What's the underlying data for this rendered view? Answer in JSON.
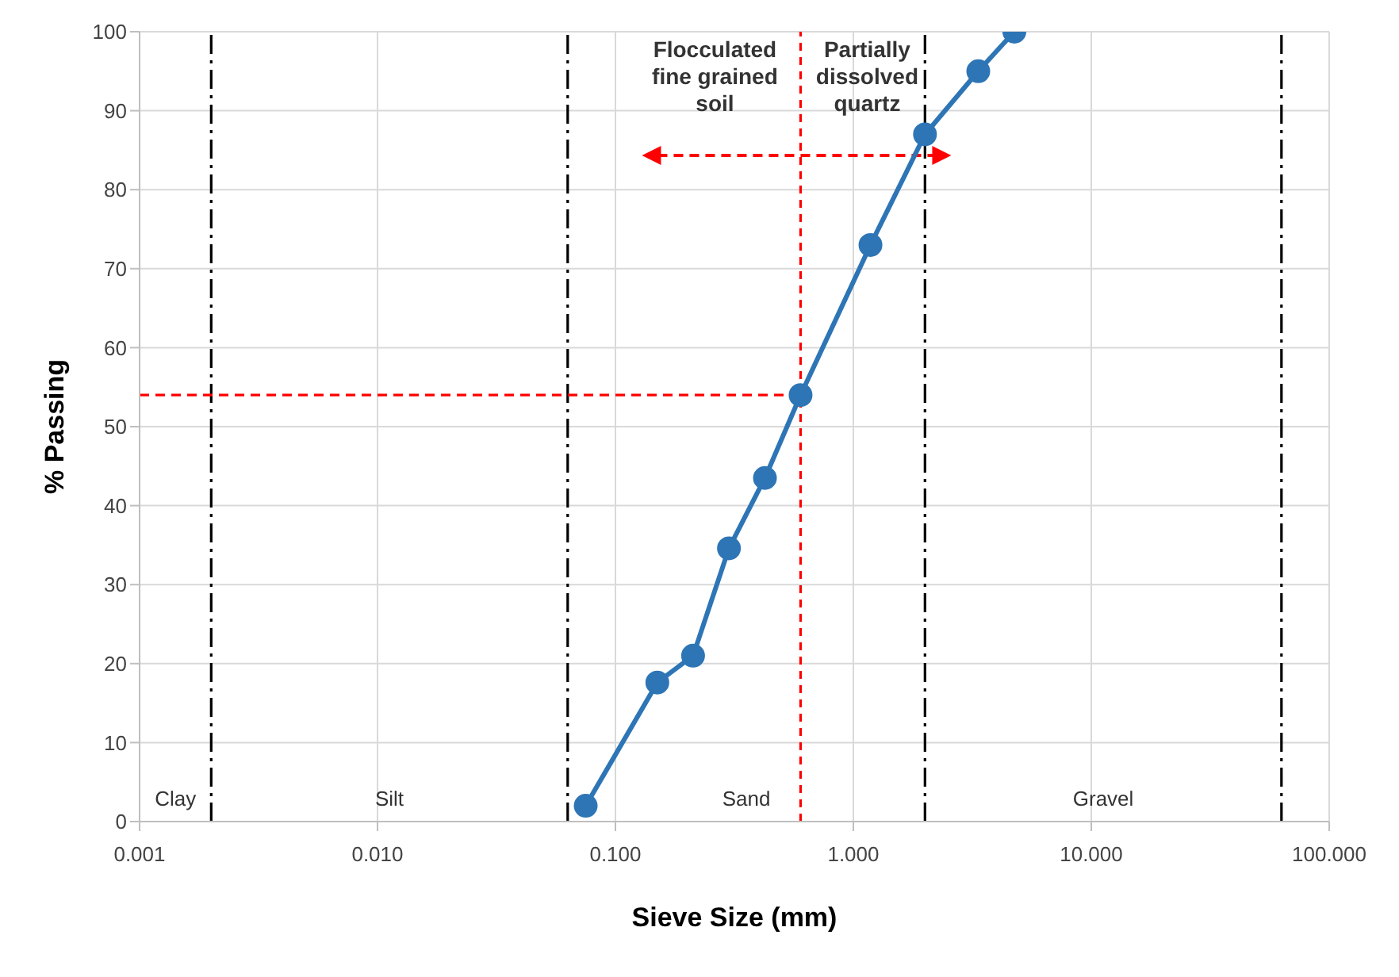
{
  "chart_data": {
    "type": "line",
    "xlabel": "Sieve Size (mm)",
    "ylabel": "% Passing",
    "log": "x",
    "grid": true,
    "marker": "circle",
    "line_style": "solid",
    "xlim": [
      0.001,
      100
    ],
    "xticks": [
      {
        "value": 0.001,
        "label": "0.001"
      },
      {
        "value": 0.01,
        "label": "0.010"
      },
      {
        "value": 0.1,
        "label": "0.100"
      },
      {
        "value": 1,
        "label": "1.000"
      },
      {
        "value": 10,
        "label": "10.000"
      },
      {
        "value": 100,
        "label": "100.000"
      }
    ],
    "ylim": [
      0,
      100
    ],
    "yticks": [
      0,
      10,
      20,
      30,
      40,
      50,
      60,
      70,
      80,
      90,
      100
    ],
    "x": [
      0.075,
      0.15,
      0.212,
      0.3,
      0.425,
      0.6,
      1.18,
      2.0,
      3.35,
      4.75
    ],
    "series": [
      {
        "color": "#2e75b6",
        "values": [
          2,
          17.6,
          21,
          34.6,
          43.5,
          54,
          73,
          87,
          95,
          100
        ]
      },
      {
        "color": "#ff0000",
        "x": [
          0.001,
          0.6
        ],
        "values": [
          54,
          54
        ],
        "marker": "none",
        "line_style": "dashed"
      }
    ],
    "ref_lines": [
      {
        "axis": "x",
        "value": 0.002,
        "color": "#000000",
        "line_style": "dashed"
      },
      {
        "axis": "x",
        "value": 0.063,
        "color": "#000000",
        "line_style": "dashed"
      },
      {
        "axis": "x",
        "value": 2,
        "color": "#000000",
        "line_style": "dashed"
      },
      {
        "axis": "x",
        "value": 63,
        "color": "#000000",
        "line_style": "dashed"
      },
      {
        "axis": "x",
        "value": 0.6,
        "color": "#ff0000",
        "line_style": "dotted"
      }
    ],
    "annotations": [
      "Flocculated fine grained soil",
      "Partially dissolved quartz",
      "Clay",
      "Silt",
      "Sand",
      "Gravel"
    ]
  }
}
